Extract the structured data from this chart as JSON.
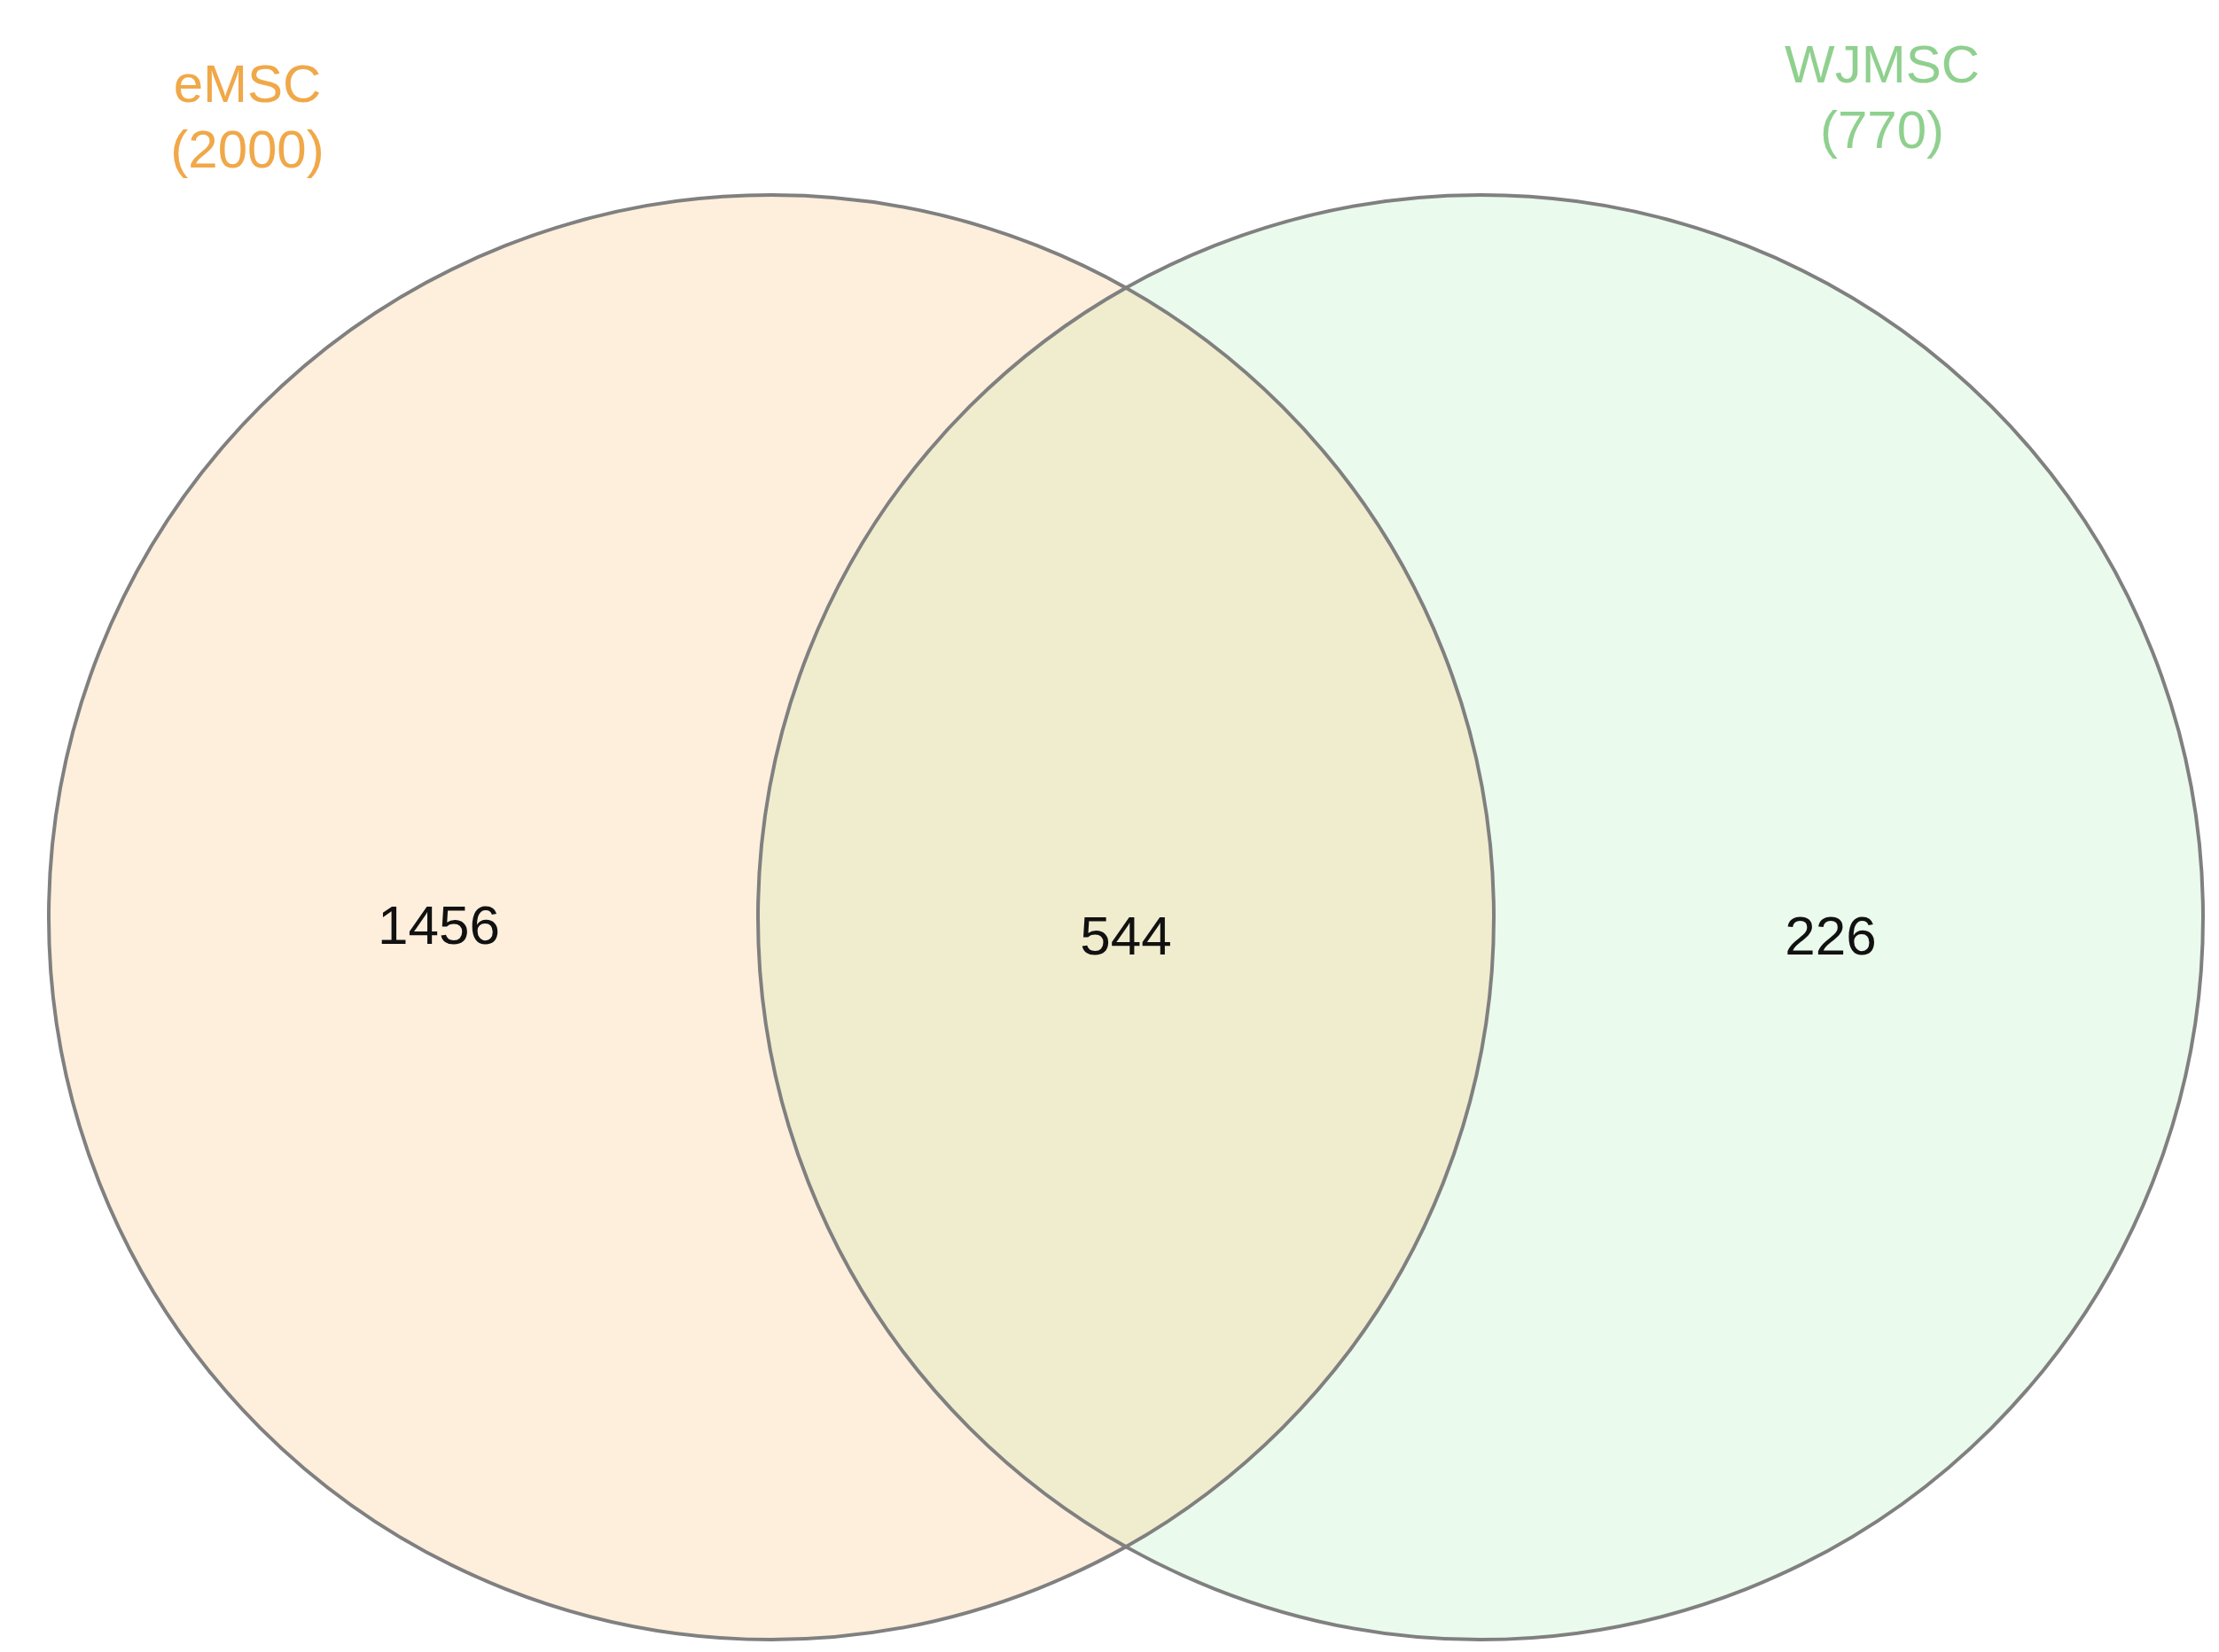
{
  "chart_data": {
    "type": "other",
    "categories": [
      null,
      null,
      null
    ],
    "values": [
      1456,
      544,
      226
    ],
    "colors": [
      "#fdefdc",
      "#f0ecce",
      "#eafaec"
    ],
    "data_labels": true,
    "annotations": [
      "eMSC",
      "(2000)",
      "WJMSC",
      "(770)"
    ]
  }
}
